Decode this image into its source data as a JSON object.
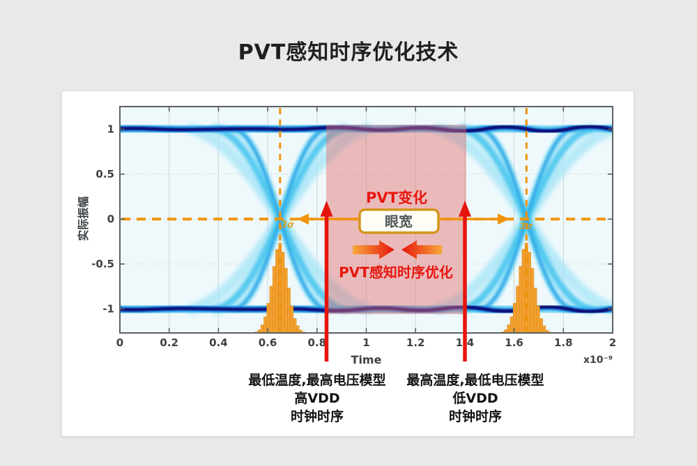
{
  "page": {
    "title": "PVT感知时序优化技术"
  },
  "figure": {
    "ylabel": "实际振幅",
    "xlabel": "Time",
    "x_unit": "x10⁻⁹",
    "sigma_label": "3σ"
  },
  "overlay": {
    "pvt_variation_label": "PVT变化",
    "eye_width_label": "眼宽",
    "pvt_optimization_label": "PVT感知时序优化"
  },
  "notes": {
    "left": {
      "line1": "最低温度,最高电压模型",
      "line2": "高VDD",
      "line3": "时钟时序"
    },
    "right": {
      "line1": "最高温度,最低电压模型",
      "line2": "低VDD",
      "line3": "时钟时序"
    }
  },
  "colors": {
    "accent_orange": "#f1930c",
    "accent_red": "#e6150c",
    "histogram_orange": "#f3a030",
    "eye_core_navy": "#081173",
    "eye_mid_blue": "#1b6fd6",
    "eye_cyan": "#40c1ee",
    "shade_pink": "rgba(228,108,108,0.45)"
  },
  "chart_data": {
    "type": "heatmap",
    "description": "NRZ eye diagram density plot with timing histograms at the eye crossings and PVT timing-optimization annotations",
    "title": "PVT感知时序优化技术",
    "xlabel": "Time",
    "x_scale": "x10⁻⁹",
    "ylabel": "实际振幅",
    "xlim": [
      0,
      2
    ],
    "ylim": [
      -1.27,
      1.26
    ],
    "x_ticks": [
      0,
      0.2,
      0.4,
      0.6,
      0.8,
      1,
      1.2,
      1.4,
      1.6,
      1.8,
      2
    ],
    "y_ticks": [
      1,
      0.5,
      0,
      -0.5,
      -1
    ],
    "grid": true,
    "signal_levels": [
      1,
      -1
    ],
    "eye_crossings_x": [
      0.65,
      1.65
    ],
    "guide_lines": {
      "horizontal_y": 0,
      "vertical_x": [
        0.65,
        1.65
      ],
      "style": "orange dashed"
    },
    "shaded_region_x": [
      0.84,
      1.41
    ],
    "eye_width_arrow_x": [
      0.75,
      1.55
    ],
    "crossing_histograms": {
      "centers": [
        0.65,
        1.65
      ],
      "bar_width": 0.012,
      "rel_heights": [
        0.012,
        0.035,
        0.09,
        0.18,
        0.33,
        0.52,
        0.74,
        0.93,
        1,
        0.9,
        0.72,
        0.5,
        0.3,
        0.16,
        0.08,
        0.03,
        0.01
      ],
      "base_amplitude": -1.27,
      "peak_top_amplitude": -0.27
    }
  }
}
